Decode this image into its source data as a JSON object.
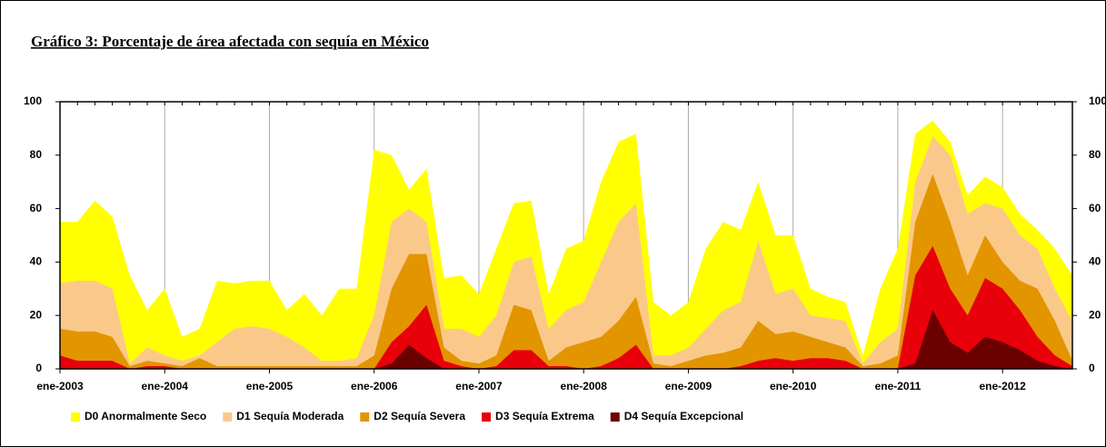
{
  "chart_data": {
    "type": "area",
    "title": "Gráfico 3: Porcentaje de área afectada con sequía en México",
    "categories": [
      "ene-2003",
      null,
      null,
      null,
      null,
      null,
      "ene-2004",
      null,
      null,
      null,
      null,
      null,
      "ene-2005",
      null,
      null,
      null,
      null,
      null,
      "ene-2006",
      null,
      null,
      null,
      null,
      null,
      "ene-2007",
      null,
      null,
      null,
      null,
      null,
      "ene-2008",
      null,
      null,
      null,
      null,
      null,
      "ene-2009",
      null,
      null,
      null,
      null,
      null,
      "ene-2010",
      null,
      null,
      null,
      null,
      null,
      "ene-2011",
      null,
      null,
      null,
      null,
      null,
      "ene-2012",
      null,
      null,
      null,
      null
    ],
    "series": [
      {
        "name": "D0 Anormalmente Seco",
        "color": "#ffff00",
        "values": [
          55,
          55,
          63,
          57,
          35,
          22,
          30,
          12,
          15,
          33,
          32,
          33,
          33,
          22,
          28,
          20,
          30,
          30,
          82,
          80,
          67,
          75,
          34,
          35,
          28,
          45,
          62,
          63,
          28,
          45,
          48,
          70,
          85,
          88,
          25,
          20,
          25,
          45,
          55,
          52,
          70,
          50,
          50,
          30,
          27,
          25,
          5,
          30,
          45,
          88,
          93,
          85,
          65,
          72,
          68,
          58,
          52,
          45,
          35
        ]
      },
      {
        "name": "D1 Sequía Moderada",
        "color": "#fac98a",
        "values": [
          32,
          33,
          33,
          30,
          2,
          8,
          5,
          3,
          5,
          10,
          15,
          16,
          15,
          12,
          8,
          3,
          3,
          4,
          20,
          55,
          60,
          55,
          15,
          15,
          12,
          20,
          40,
          42,
          15,
          22,
          25,
          40,
          55,
          62,
          5,
          5,
          8,
          15,
          22,
          25,
          48,
          28,
          30,
          20,
          19,
          18,
          2,
          10,
          15,
          70,
          87,
          80,
          58,
          62,
          60,
          50,
          45,
          30,
          18
        ]
      },
      {
        "name": "D2 Sequía Severa",
        "color": "#e39500",
        "values": [
          15,
          14,
          14,
          12,
          1,
          3,
          2,
          1,
          4,
          1,
          1,
          1,
          1,
          1,
          1,
          1,
          1,
          1,
          5,
          30,
          43,
          43,
          8,
          3,
          2,
          5,
          24,
          22,
          3,
          8,
          10,
          12,
          18,
          27,
          2,
          1,
          3,
          5,
          6,
          8,
          18,
          13,
          14,
          12,
          10,
          8,
          1,
          2,
          5,
          55,
          73,
          55,
          35,
          50,
          40,
          33,
          30,
          18,
          3
        ]
      },
      {
        "name": "D3 Sequía Extrema",
        "color": "#e8000b",
        "values": [
          5,
          3,
          3,
          3,
          0,
          1,
          1,
          0,
          0,
          0,
          0,
          0,
          0,
          0,
          0,
          0,
          0,
          0,
          0,
          10,
          16,
          24,
          3,
          1,
          0,
          1,
          7,
          7,
          1,
          1,
          0,
          1,
          4,
          9,
          0,
          0,
          0,
          0,
          0,
          1,
          3,
          4,
          3,
          4,
          4,
          3,
          0,
          0,
          0,
          35,
          46,
          30,
          20,
          34,
          30,
          22,
          12,
          5,
          1
        ]
      },
      {
        "name": "D4 Sequía Excepcional",
        "color": "#6b0000",
        "values": [
          0,
          0,
          0,
          0,
          0,
          0,
          0,
          0,
          0,
          0,
          0,
          0,
          0,
          0,
          0,
          0,
          0,
          0,
          0,
          2,
          9,
          4,
          0,
          0,
          0,
          0,
          0,
          0,
          0,
          0,
          0,
          0,
          0,
          0,
          0,
          0,
          0,
          0,
          0,
          0,
          0,
          0,
          0,
          0,
          0,
          0,
          0,
          0,
          0,
          2,
          22,
          10,
          6,
          12,
          10,
          7,
          3,
          1,
          0
        ]
      }
    ],
    "ylim": [
      0,
      100
    ],
    "yticks": [
      0,
      20,
      40,
      60,
      80,
      100
    ],
    "y2lim": [
      0,
      100
    ],
    "y2ticks": [
      0,
      20,
      40,
      60,
      80,
      100
    ],
    "grid": true,
    "legend": "bottom"
  }
}
